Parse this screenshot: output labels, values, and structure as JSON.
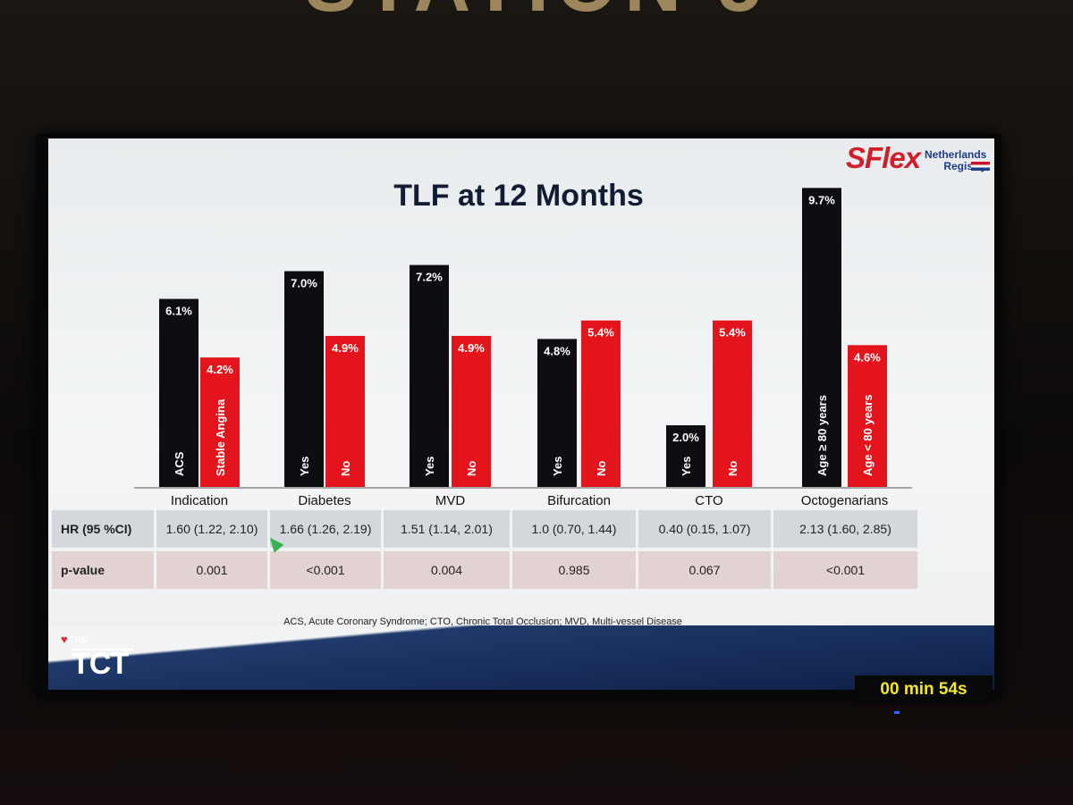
{
  "slide": {
    "title": "TLF at 12 Months",
    "logo_word": "SFlex",
    "logo_sub": [
      "Netherlands",
      "Registry"
    ],
    "footnote": "ACS, Acute Coronary Syndrome; CTO, Chronic Total Occlusion; MVD, Multi-vessel Disease",
    "event_brand": {
      "org": "CRF",
      "name": "TCT"
    },
    "timer": "00 min 54s"
  },
  "chart_data": {
    "type": "bar",
    "title": "TLF at 12 Months",
    "categories": [
      "Indication",
      "Diabetes",
      "MVD",
      "Bifurcation",
      "CTO",
      "Octogenarians"
    ],
    "bars": [
      {
        "group": "Indication",
        "label": "ACS",
        "value": 6.1,
        "value_label": "6.1%",
        "color": "#0d0d12"
      },
      {
        "group": "Indication",
        "label": "Stable Angina",
        "value": 4.2,
        "value_label": "4.2%",
        "color": "#e3141c"
      },
      {
        "group": "Diabetes",
        "label": "Yes",
        "value": 7.0,
        "value_label": "7.0%",
        "color": "#0d0d12"
      },
      {
        "group": "Diabetes",
        "label": "No",
        "value": 4.9,
        "value_label": "4.9%",
        "color": "#e3141c"
      },
      {
        "group": "MVD",
        "label": "Yes",
        "value": 7.2,
        "value_label": "7.2%",
        "color": "#0d0d12"
      },
      {
        "group": "MVD",
        "label": "No",
        "value": 4.9,
        "value_label": "4.9%",
        "color": "#e3141c"
      },
      {
        "group": "Bifurcation",
        "label": "Yes",
        "value": 4.8,
        "value_label": "4.8%",
        "color": "#0d0d12"
      },
      {
        "group": "Bifurcation",
        "label": "No",
        "value": 5.4,
        "value_label": "5.4%",
        "color": "#e3141c"
      },
      {
        "group": "CTO",
        "label": "Yes",
        "value": 2.0,
        "value_label": "2.0%",
        "color": "#0d0d12"
      },
      {
        "group": "CTO",
        "label": "No",
        "value": 5.4,
        "value_label": "5.4%",
        "color": "#e3141c"
      },
      {
        "group": "Octogenarians",
        "label": "Age ≥ 80 years",
        "value": 9.7,
        "value_label": "9.7%",
        "color": "#0d0d12"
      },
      {
        "group": "Octogenarians",
        "label": "Age < 80 years",
        "value": 4.6,
        "value_label": "4.6%",
        "color": "#e3141c"
      }
    ],
    "ylim": [
      0,
      10
    ],
    "grid": false,
    "legend": "none"
  },
  "table": {
    "rows": [
      {
        "header": "HR (95 %CI)",
        "cells": [
          "1.60 (1.22, 2.10)",
          "1.66 (1.26, 2.19)",
          "1.51 (1.14, 2.01)",
          "1.0 (0.70, 1.44)",
          "0.40 (0.15, 1.07)",
          "2.13 (1.60, 2.85)"
        ]
      },
      {
        "header": "p-value",
        "cells": [
          "0.001",
          "<0.001",
          "0.004",
          "0.985",
          "0.067",
          "<0.001"
        ]
      }
    ]
  }
}
